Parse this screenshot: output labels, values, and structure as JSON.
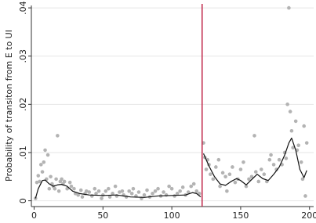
{
  "chart_data": {
    "type": "scatter",
    "y_label": "Probability of transiton from E to UI",
    "xlim": [
      -2,
      203
    ],
    "ylim": [
      -0.0012,
      0.0405
    ],
    "xticks": [
      0,
      50,
      100,
      150,
      200
    ],
    "yticks": [
      {
        "value": 0,
        "label": "0"
      },
      {
        "value": 0.01,
        "label": ".01"
      },
      {
        "value": 0.02,
        "label": ".02"
      },
      {
        "value": 0.03,
        "label": ".03"
      },
      {
        "value": 0.04,
        "label": ".04"
      }
    ],
    "grid": true,
    "points": {
      "color": "#b3b3b3",
      "x": [
        1,
        2,
        3,
        4,
        5,
        6,
        7,
        8,
        9,
        10,
        11,
        12,
        13,
        14,
        15,
        16,
        17,
        18,
        19,
        20,
        21,
        22,
        24,
        26,
        27,
        29,
        30,
        32,
        34,
        35,
        37,
        38,
        40,
        42,
        44,
        45,
        47,
        49,
        50,
        52,
        54,
        55,
        57,
        59,
        60,
        62,
        64,
        65,
        67,
        69,
        71,
        72,
        74,
        76,
        78,
        80,
        82,
        84,
        86,
        88,
        90,
        92,
        94,
        96,
        98,
        100,
        102,
        104,
        106,
        108,
        110,
        112,
        114,
        116,
        118,
        120,
        123,
        124,
        125,
        126,
        127,
        128,
        130,
        132,
        134,
        135,
        137,
        139,
        140,
        142,
        144,
        146,
        148,
        150,
        152,
        154,
        156,
        158,
        160,
        161,
        163,
        165,
        167,
        169,
        171,
        172,
        174,
        176,
        178,
        180,
        182,
        183,
        184,
        185,
        186,
        187,
        188,
        190,
        191,
        192,
        194,
        195,
        196,
        197,
        198
      ],
      "values": [
        0.0005,
        0.0038,
        0.0052,
        0.004,
        0.0075,
        0.006,
        0.008,
        0.0105,
        0.0045,
        0.0095,
        0.0025,
        0.005,
        0.0035,
        0.003,
        0.0025,
        0.0045,
        0.0135,
        0.002,
        0.004,
        0.0045,
        0.0035,
        0.004,
        0.0025,
        0.0038,
        0.003,
        0.0025,
        0.0015,
        0.0012,
        0.0022,
        0.0008,
        0.0015,
        0.002,
        0.0018,
        0.001,
        0.0025,
        0.0015,
        0.002,
        0.0005,
        0.0012,
        0.002,
        0.0025,
        0.0008,
        0.0015,
        0.003,
        0.001,
        0.0018,
        0.002,
        0.0012,
        0.0008,
        0.002,
        0.0015,
        0.0025,
        0.001,
        0.0018,
        0.0005,
        0.0012,
        0.0022,
        0.0008,
        0.0015,
        0.002,
        0.0025,
        0.001,
        0.0018,
        0.0012,
        0.003,
        0.0025,
        0.001,
        0.0015,
        0.002,
        0.0028,
        0.0012,
        0.0018,
        0.003,
        0.0035,
        0.002,
        0.0015,
        0.012,
        0.009,
        0.0065,
        0.0085,
        0.0075,
        0.0055,
        0.0045,
        0.007,
        0.0085,
        0.003,
        0.0058,
        0.005,
        0.002,
        0.0055,
        0.007,
        0.0038,
        0.0045,
        0.0065,
        0.008,
        0.003,
        0.0045,
        0.005,
        0.0135,
        0.006,
        0.004,
        0.0065,
        0.0055,
        0.004,
        0.0085,
        0.0095,
        0.0075,
        0.0065,
        0.0085,
        0.0075,
        0.01,
        0.0088,
        0.02,
        0.04,
        0.0185,
        0.0145,
        0.011,
        0.0165,
        0.0105,
        0.0115,
        0.008,
        0.0045,
        0.0155,
        0.001,
        0.012
      ]
    },
    "fit": {
      "color": "#111111",
      "x": [
        1,
        3,
        6,
        8,
        11,
        14,
        17,
        20,
        24,
        28,
        33,
        40,
        50,
        60,
        70,
        80,
        90,
        100,
        110,
        115,
        118,
        121,
        122,
        123,
        127,
        131,
        135,
        139,
        143,
        147,
        150,
        154,
        158,
        162,
        166,
        170,
        174,
        178,
        182,
        185,
        187,
        190,
        193,
        196,
        198
      ],
      "values": [
        0.0005,
        0.0025,
        0.0042,
        0.0043,
        0.0035,
        0.003,
        0.0033,
        0.0034,
        0.003,
        0.002,
        0.0015,
        0.0012,
        0.0011,
        0.0012,
        0.0008,
        0.0007,
        0.001,
        0.0011,
        0.0012,
        0.0017,
        0.0015,
        0.0008,
        null,
        0.0098,
        0.0072,
        0.005,
        0.0035,
        0.0032,
        0.004,
        0.0046,
        0.0042,
        0.0033,
        0.0044,
        0.0055,
        0.0046,
        0.0042,
        0.0055,
        0.007,
        0.0095,
        0.012,
        0.013,
        0.0105,
        0.0065,
        0.0048,
        0.0063
      ]
    },
    "vline": {
      "x": 122,
      "color": "#c0284a"
    }
  }
}
